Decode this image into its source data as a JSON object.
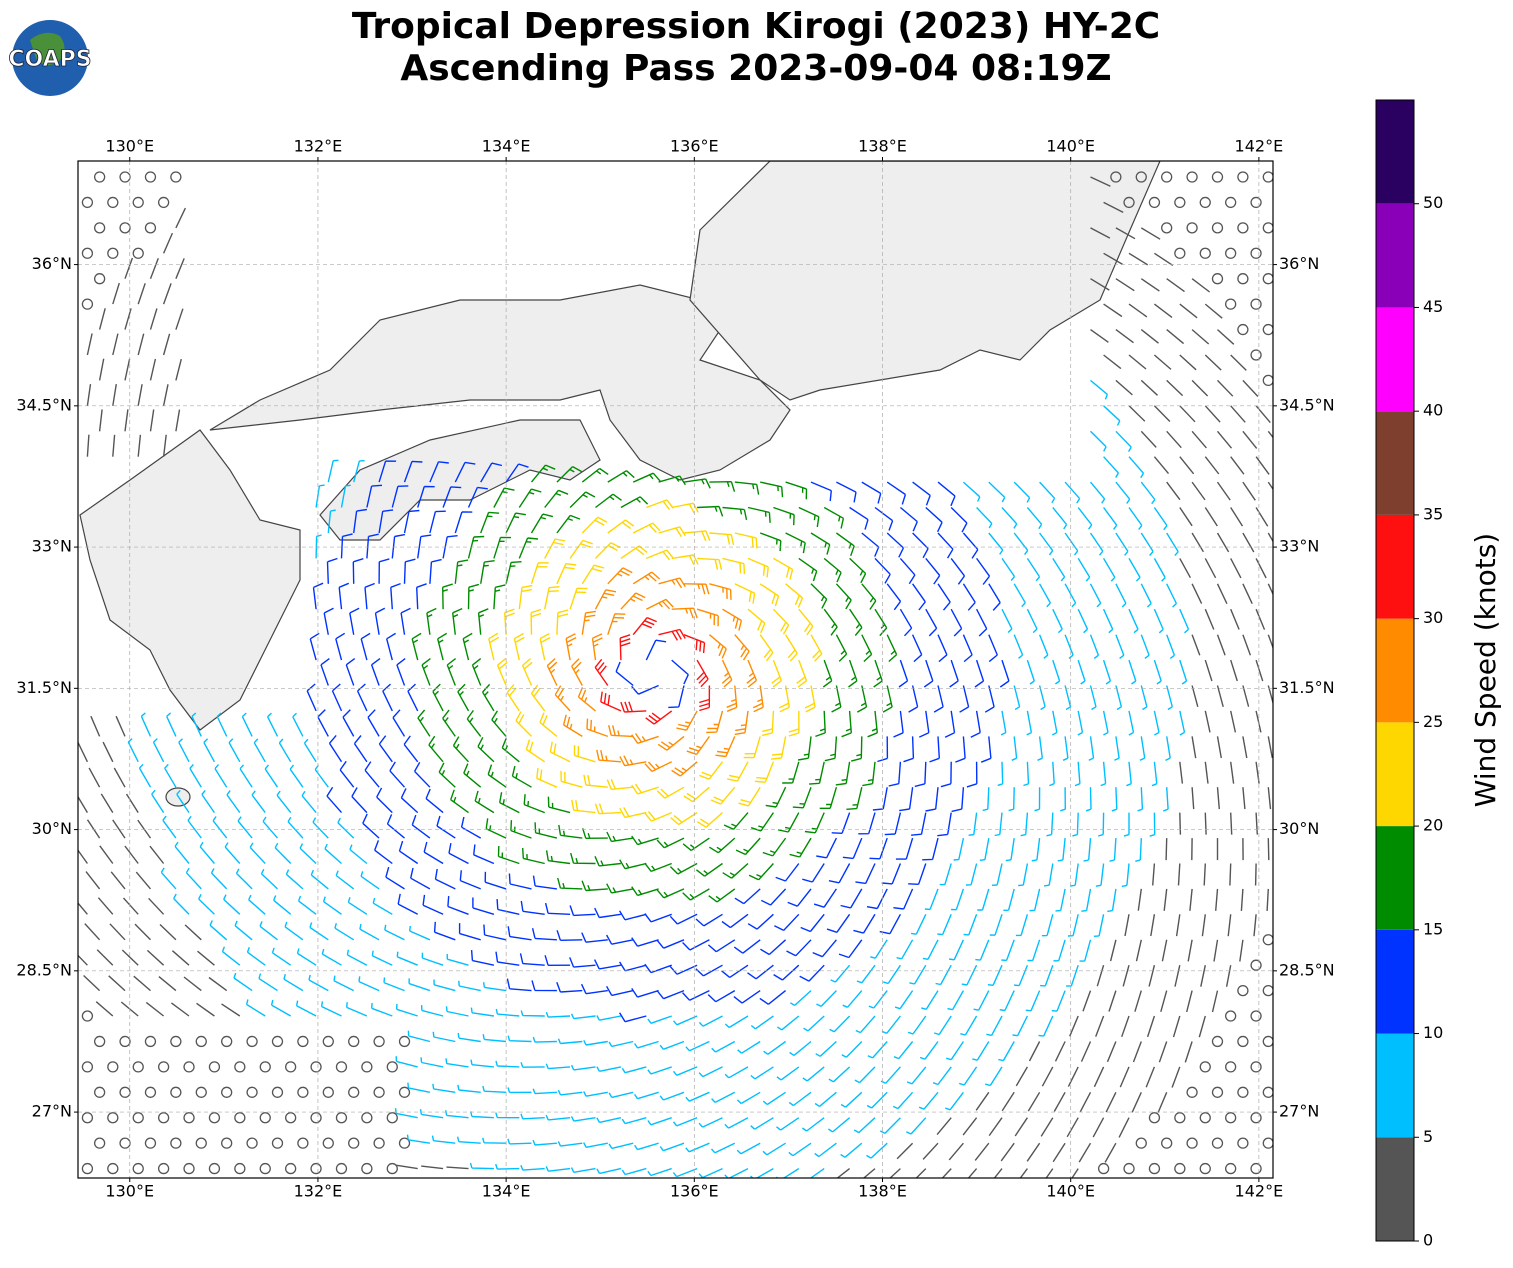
{
  "chart_data": {
    "type": "wind-barb-map",
    "title": "Tropical Depression Kirogi (2023) HY-2C",
    "subtitle": "Ascending Pass 2023-09-04 08:19Z",
    "logo": "COAPS",
    "xlim": [
      129.45,
      142.15
    ],
    "ylim": [
      26.3,
      37.1
    ],
    "xticks": [
      {
        "value": 130,
        "label": "130°E"
      },
      {
        "value": 132,
        "label": "132°E"
      },
      {
        "value": 134,
        "label": "134°E"
      },
      {
        "value": 136,
        "label": "136°E"
      },
      {
        "value": 138,
        "label": "138°E"
      },
      {
        "value": 140,
        "label": "140°E"
      },
      {
        "value": 142,
        "label": "142°E"
      }
    ],
    "yticks": [
      {
        "value": 27,
        "label": "27°N"
      },
      {
        "value": 28.5,
        "label": "28.5°N"
      },
      {
        "value": 30,
        "label": "30°N"
      },
      {
        "value": 31.5,
        "label": "31.5°N"
      },
      {
        "value": 33,
        "label": "33°N"
      },
      {
        "value": 34.5,
        "label": "34.5°N"
      },
      {
        "value": 36,
        "label": "36°N"
      }
    ],
    "grid": true,
    "colorbar": {
      "label": "Wind Speed (knots)",
      "lim": [
        0,
        55
      ],
      "ticks": [
        0,
        5,
        10,
        15,
        20,
        25,
        30,
        35,
        40,
        45,
        50
      ],
      "colors": [
        "#555555",
        "#00bfff",
        "#0033ff",
        "#008c00",
        "#ffd700",
        "#ff8c00",
        "#ff1010",
        "#7f3f2f",
        "#ff00ff",
        "#8a00b8",
        "#2a0060"
      ]
    }
  }
}
